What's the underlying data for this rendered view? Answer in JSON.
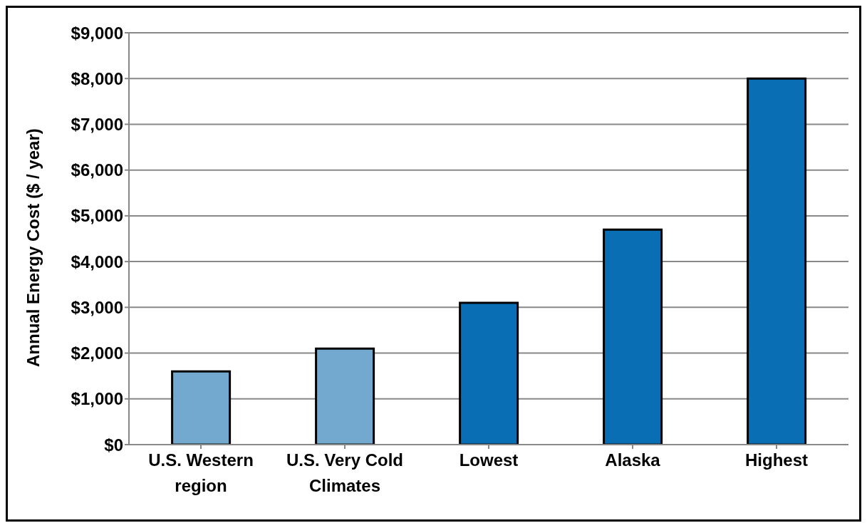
{
  "chart_data": {
    "type": "bar",
    "ylabel": "Annual Energy Cost ($ / year)",
    "categories": [
      "U.S. Western region",
      "U.S. Very Cold Climates",
      "Lowest",
      "Alaska",
      "Highest"
    ],
    "values": [
      1600,
      2100,
      3100,
      4700,
      8000
    ],
    "colors": [
      "#74a9cf",
      "#74a9cf",
      "#0a6eb4",
      "#0a6eb4",
      "#0a6eb4"
    ],
    "ylim": [
      0,
      9000
    ],
    "yticks": [
      {
        "value": 0,
        "label": "$0"
      },
      {
        "value": 1000,
        "label": "$1,000"
      },
      {
        "value": 2000,
        "label": "$2,000"
      },
      {
        "value": 3000,
        "label": "$3,000"
      },
      {
        "value": 4000,
        "label": "$4,000"
      },
      {
        "value": 5000,
        "label": "$5,000"
      },
      {
        "value": 6000,
        "label": "$6,000"
      },
      {
        "value": 7000,
        "label": "$7,000"
      },
      {
        "value": 8000,
        "label": "$8,000"
      },
      {
        "value": 9000,
        "label": "$9,000"
      }
    ],
    "grid": "y"
  }
}
